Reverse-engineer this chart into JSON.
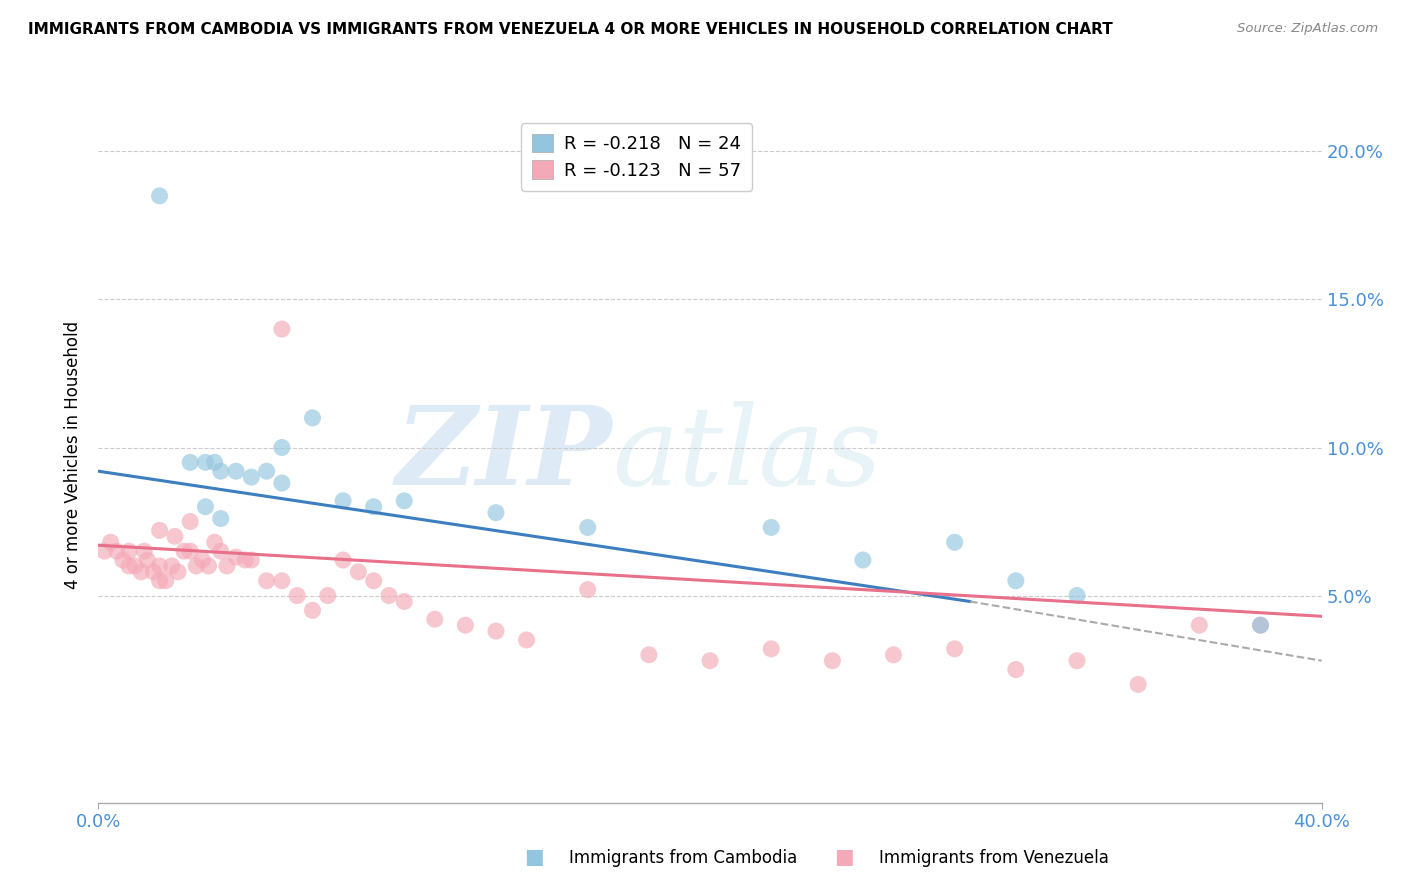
{
  "title": "IMMIGRANTS FROM CAMBODIA VS IMMIGRANTS FROM VENEZUELA 4 OR MORE VEHICLES IN HOUSEHOLD CORRELATION CHART",
  "source": "Source: ZipAtlas.com",
  "ylabel": "4 or more Vehicles in Household",
  "xlim": [
    0.0,
    0.4
  ],
  "ylim": [
    -0.02,
    0.215
  ],
  "watermark_part1": "ZIP",
  "watermark_part2": "atlas",
  "legend_cambodia": "R = -0.218   N = 24",
  "legend_venezuela": "R = -0.123   N = 57",
  "color_cambodia": "#92c5de",
  "color_venezuela": "#f4a9b8",
  "color_cambodia_line": "#3d7ebf",
  "color_venezuela_line": "#e8708a",
  "color_dashed_line": "#aaaaaa",
  "cambodia_scatter_x": [
    0.02,
    0.03,
    0.035,
    0.038,
    0.04,
    0.045,
    0.05,
    0.055,
    0.06,
    0.07,
    0.08,
    0.09,
    0.1,
    0.13,
    0.16,
    0.22,
    0.25,
    0.28,
    0.3,
    0.32,
    0.035,
    0.04,
    0.06,
    0.38
  ],
  "cambodia_scatter_y": [
    0.185,
    0.095,
    0.095,
    0.095,
    0.092,
    0.092,
    0.09,
    0.092,
    0.088,
    0.11,
    0.082,
    0.08,
    0.082,
    0.078,
    0.073,
    0.073,
    0.062,
    0.068,
    0.055,
    0.05,
    0.08,
    0.076,
    0.1,
    0.04
  ],
  "venezuela_scatter_x": [
    0.002,
    0.004,
    0.006,
    0.008,
    0.01,
    0.01,
    0.012,
    0.014,
    0.015,
    0.016,
    0.018,
    0.02,
    0.02,
    0.022,
    0.024,
    0.026,
    0.028,
    0.03,
    0.032,
    0.034,
    0.036,
    0.038,
    0.04,
    0.042,
    0.045,
    0.048,
    0.05,
    0.055,
    0.06,
    0.065,
    0.07,
    0.075,
    0.08,
    0.085,
    0.09,
    0.095,
    0.1,
    0.11,
    0.12,
    0.13,
    0.14,
    0.16,
    0.18,
    0.2,
    0.22,
    0.24,
    0.26,
    0.28,
    0.3,
    0.32,
    0.34,
    0.36,
    0.38,
    0.06,
    0.03,
    0.02,
    0.025
  ],
  "venezuela_scatter_y": [
    0.065,
    0.068,
    0.065,
    0.062,
    0.06,
    0.065,
    0.06,
    0.058,
    0.065,
    0.062,
    0.058,
    0.055,
    0.06,
    0.055,
    0.06,
    0.058,
    0.065,
    0.065,
    0.06,
    0.062,
    0.06,
    0.068,
    0.065,
    0.06,
    0.063,
    0.062,
    0.062,
    0.055,
    0.055,
    0.05,
    0.045,
    0.05,
    0.062,
    0.058,
    0.055,
    0.05,
    0.048,
    0.042,
    0.04,
    0.038,
    0.035,
    0.052,
    0.03,
    0.028,
    0.032,
    0.028,
    0.03,
    0.032,
    0.025,
    0.028,
    0.02,
    0.04,
    0.04,
    0.14,
    0.075,
    0.072,
    0.07
  ],
  "cambodia_trendline_x": [
    0.0,
    0.285
  ],
  "cambodia_trendline_y": [
    0.092,
    0.048
  ],
  "venezuela_trendline_x": [
    0.0,
    0.4
  ],
  "venezuela_trendline_y": [
    0.067,
    0.043
  ],
  "dashed_trendline_x": [
    0.285,
    0.4
  ],
  "dashed_trendline_y": [
    0.048,
    0.028
  ],
  "ytick_vals": [
    0.05,
    0.1,
    0.15,
    0.2
  ]
}
